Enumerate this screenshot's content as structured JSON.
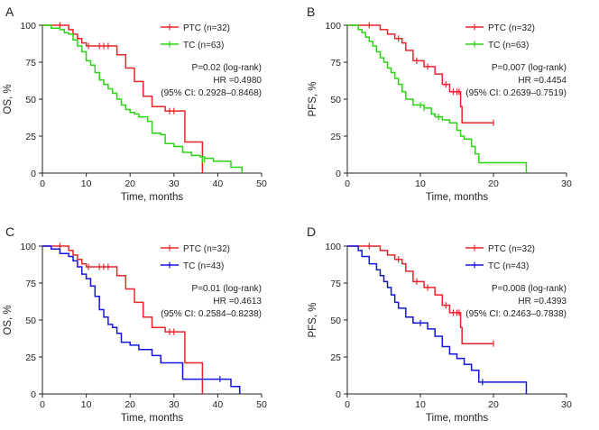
{
  "chart_data": [
    {
      "panel": "A",
      "type": "line",
      "xlabel": "Time, months",
      "ylabel": "OS, %",
      "xlim": [
        0,
        50
      ],
      "ylim": [
        0,
        100
      ],
      "xticks": [
        0,
        10,
        20,
        30,
        40,
        50
      ],
      "yticks": [
        0,
        25,
        50,
        75,
        100
      ],
      "grid": false,
      "legend_position": "top-right",
      "stats": [
        "P=0.02 (log-rank)",
        "HR =0.4980",
        "(95% CI: 0.2928–0.8468)"
      ],
      "series": [
        {
          "name": "PTC (n=32)",
          "color": "#e8242a",
          "step_x": [
            0,
            6,
            7,
            8,
            9,
            10,
            12,
            13,
            17,
            19,
            21,
            23,
            25,
            28,
            32.5,
            36.5
          ],
          "step_y": [
            100,
            97,
            94,
            91,
            88,
            86,
            86,
            86,
            80,
            71,
            62,
            52,
            45,
            42,
            21,
            0
          ],
          "censor_x": [
            4,
            10.5,
            13,
            14,
            15,
            29,
            30
          ],
          "censor_y": [
            100,
            86,
            86,
            86,
            86,
            42,
            42
          ]
        },
        {
          "name": "TC (n=63)",
          "color": "#2bd413",
          "step_x": [
            0,
            2,
            4,
            5,
            6,
            7,
            8,
            9,
            10,
            11,
            12,
            13,
            14,
            15,
            16,
            17,
            18,
            19,
            20,
            21,
            22,
            24,
            25,
            27,
            28,
            30,
            32,
            34,
            35,
            36,
            37,
            39,
            43,
            45.5
          ],
          "step_y": [
            100,
            98,
            97,
            95,
            94,
            90,
            86,
            82,
            76,
            73,
            68,
            63,
            60,
            57,
            54,
            50,
            46,
            43,
            41,
            40,
            38,
            35,
            27,
            26,
            20,
            18,
            14,
            12,
            12,
            11,
            10,
            8,
            4,
            0
          ],
          "censor_x": [
            36.5,
            37
          ],
          "censor_y": [
            9,
            9
          ]
        }
      ]
    },
    {
      "panel": "B",
      "type": "line",
      "xlabel": "Time, months",
      "ylabel": "PFS, %",
      "xlim": [
        0,
        30
      ],
      "ylim": [
        0,
        100
      ],
      "xticks": [
        0,
        10,
        20,
        30
      ],
      "yticks": [
        0,
        25,
        50,
        75,
        100
      ],
      "grid": false,
      "legend_position": "top-right",
      "stats": [
        "P=0.007 (log-rank)",
        "HR =0.4454",
        "(95% CI: 0.2639–0.7519)"
      ],
      "series": [
        {
          "name": "PTC (n=32)",
          "color": "#e8242a",
          "step_x": [
            0,
            4.5,
            5.5,
            6.5,
            7.5,
            8,
            9,
            10,
            10.5,
            12,
            13,
            14,
            15.5,
            15.7
          ],
          "step_y": [
            100,
            97,
            94,
            91,
            88,
            83,
            76,
            76,
            72,
            67,
            60,
            55,
            45,
            34
          ],
          "end_x": 20,
          "censor_x": [
            3,
            7,
            9.5,
            11,
            13.5,
            14.5,
            15,
            15.3,
            20
          ],
          "censor_y": [
            100,
            91,
            76,
            72,
            60,
            55,
            55,
            55,
            34
          ]
        },
        {
          "name": "TC (n=63)",
          "color": "#2bd413",
          "step_x": [
            0,
            1.5,
            2,
            2.5,
            3,
            3.5,
            4,
            4.5,
            5,
            5.5,
            6,
            6.5,
            7,
            7.5,
            8,
            9,
            10.5,
            11.5,
            12,
            13,
            14,
            15,
            15.5,
            16,
            17,
            17.5,
            18,
            24.5
          ],
          "step_y": [
            100,
            97,
            95,
            92,
            89,
            86,
            82,
            78,
            75,
            71,
            68,
            64,
            60,
            55,
            50,
            46,
            44,
            40,
            38,
            36,
            34,
            29,
            25,
            23,
            18,
            13,
            7,
            0
          ],
          "censor_x": [
            10,
            10.5,
            12.5
          ],
          "censor_y": [
            46,
            44,
            38
          ]
        }
      ]
    },
    {
      "panel": "C",
      "type": "line",
      "xlabel": "Time, months",
      "ylabel": "OS, %",
      "xlim": [
        0,
        50
      ],
      "ylim": [
        0,
        100
      ],
      "xticks": [
        0,
        10,
        20,
        30,
        40,
        50
      ],
      "yticks": [
        0,
        25,
        50,
        75,
        100
      ],
      "grid": false,
      "legend_position": "top-right",
      "stats": [
        "P=0.01 (log-rank)",
        "HR =0.4613",
        "(95% CI: 0.2584–0.8238)"
      ],
      "series": [
        {
          "name": "PTC (n=32)",
          "color": "#e8242a",
          "step_x": [
            0,
            6,
            7,
            8,
            9,
            10,
            12,
            13,
            17,
            19,
            21,
            23,
            25,
            28,
            32.5,
            36.5
          ],
          "step_y": [
            100,
            97,
            94,
            91,
            88,
            86,
            86,
            86,
            80,
            71,
            62,
            52,
            45,
            42,
            21,
            0
          ],
          "censor_x": [
            4,
            10.5,
            13,
            14,
            15,
            29,
            30
          ],
          "censor_y": [
            100,
            86,
            86,
            86,
            86,
            42,
            42
          ]
        },
        {
          "name": "TC (n=43)",
          "color": "#1414e0",
          "step_x": [
            0,
            2,
            4,
            6,
            7,
            8,
            9,
            10,
            11,
            12,
            13,
            14,
            15,
            16,
            17,
            18,
            20,
            22,
            25,
            27,
            32,
            37,
            43,
            45
          ],
          "step_y": [
            100,
            98,
            95,
            93,
            90,
            86,
            81,
            78,
            73,
            66,
            57,
            52,
            47,
            45,
            41,
            35,
            33,
            30,
            26,
            21,
            10,
            10,
            5,
            0
          ],
          "censor_x": [
            40.5
          ],
          "censor_y": [
            10
          ]
        }
      ]
    },
    {
      "panel": "D",
      "type": "line",
      "xlabel": "Time, months",
      "ylabel": "PFS, %",
      "xlim": [
        0,
        30
      ],
      "ylim": [
        0,
        100
      ],
      "xticks": [
        0,
        10,
        20,
        30
      ],
      "yticks": [
        0,
        25,
        50,
        75,
        100
      ],
      "grid": false,
      "legend_position": "top-right",
      "stats": [
        "P=0.008 (log-rank)",
        "HR =0.4393",
        "(95% CI: 0.2463–0.7838)"
      ],
      "series": [
        {
          "name": "PTC (n=32)",
          "color": "#e8242a",
          "step_x": [
            0,
            4.5,
            5.5,
            6.5,
            7.5,
            8,
            9,
            10,
            10.5,
            12,
            13,
            14,
            15.5,
            15.7
          ],
          "step_y": [
            100,
            97,
            94,
            91,
            88,
            83,
            76,
            76,
            72,
            67,
            60,
            55,
            45,
            34
          ],
          "end_x": 20,
          "censor_x": [
            3,
            7,
            9.5,
            11,
            13.5,
            14.5,
            15,
            15.3,
            20
          ],
          "censor_y": [
            100,
            91,
            76,
            72,
            60,
            55,
            55,
            55,
            34
          ]
        },
        {
          "name": "TC (n=43)",
          "color": "#1414e0",
          "step_x": [
            0,
            1.5,
            2,
            3,
            4,
            4.5,
            5,
            5.5,
            6,
            6.5,
            7,
            8,
            9,
            10,
            11,
            12,
            13,
            14,
            15,
            16,
            17,
            18,
            24.5
          ],
          "step_y": [
            100,
            97,
            93,
            88,
            84,
            80,
            76,
            72,
            67,
            62,
            58,
            52,
            48,
            48,
            44,
            39,
            32,
            27,
            24,
            20,
            16,
            8,
            0
          ],
          "censor_x": [
            10,
            18.5
          ],
          "censor_y": [
            48,
            8
          ]
        }
      ]
    }
  ]
}
